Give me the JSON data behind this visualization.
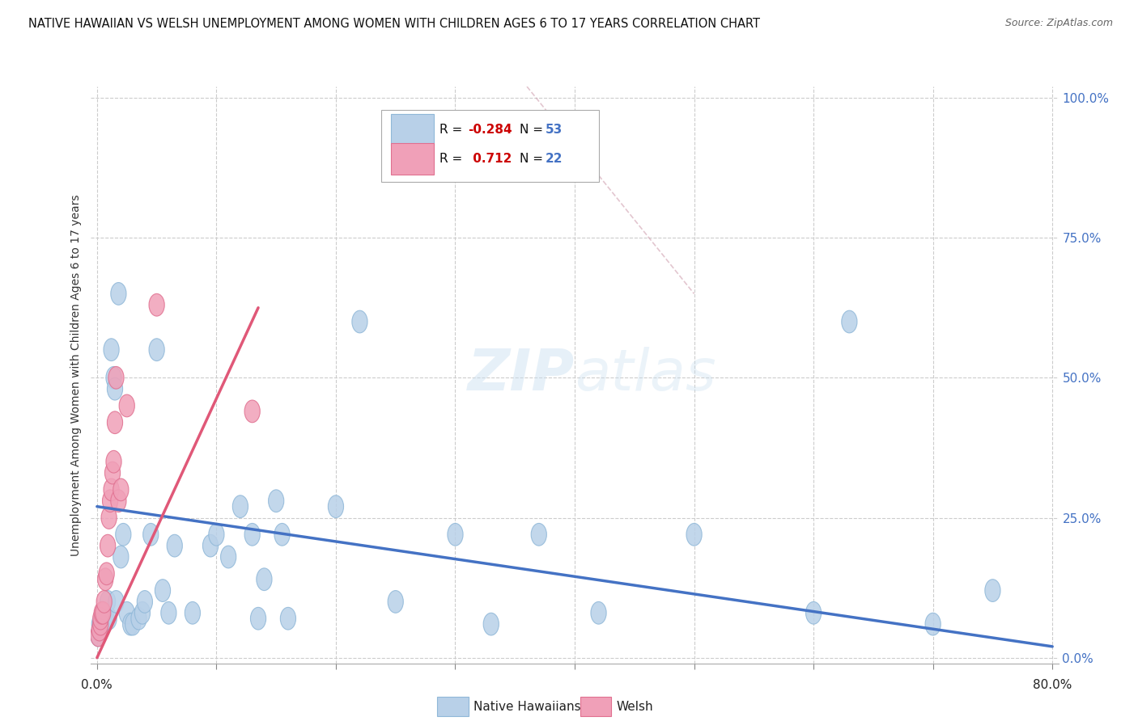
{
  "title": "NATIVE HAWAIIAN VS WELSH UNEMPLOYMENT AMONG WOMEN WITH CHILDREN AGES 6 TO 17 YEARS CORRELATION CHART",
  "source": "Source: ZipAtlas.com",
  "ylabel": "Unemployment Among Women with Children Ages 6 to 17 years",
  "nh_color_face": "#b8d0e8",
  "nh_color_edge": "#90b8d8",
  "welsh_color_face": "#f0a0b8",
  "welsh_color_edge": "#e07090",
  "nh_line_color": "#4472c4",
  "welsh_line_color": "#e05878",
  "diag_color": "#d0a0b0",
  "right_ytick_vals": [
    0.0,
    0.25,
    0.5,
    0.75,
    1.0
  ],
  "right_ytick_labels": [
    "0.0%",
    "25.0%",
    "50.0%",
    "75.0%",
    "100.0%"
  ],
  "right_ytick_color": "#4472c4",
  "watermark_text": "ZIPatlas",
  "watermark_color": "#ddeeff",
  "xlim": [
    0.0,
    0.8
  ],
  "ylim": [
    0.0,
    1.0
  ],
  "nh_x": [
    0.001,
    0.002,
    0.002,
    0.003,
    0.003,
    0.004,
    0.005,
    0.006,
    0.007,
    0.008,
    0.009,
    0.01,
    0.012,
    0.014,
    0.015,
    0.016,
    0.018,
    0.02,
    0.022,
    0.025,
    0.028,
    0.03,
    0.035,
    0.038,
    0.04,
    0.045,
    0.05,
    0.055,
    0.06,
    0.065,
    0.08,
    0.095,
    0.1,
    0.11,
    0.12,
    0.13,
    0.135,
    0.14,
    0.15,
    0.155,
    0.16,
    0.2,
    0.22,
    0.25,
    0.3,
    0.33,
    0.37,
    0.42,
    0.5,
    0.6,
    0.63,
    0.7,
    0.75
  ],
  "nh_y": [
    0.04,
    0.05,
    0.06,
    0.05,
    0.06,
    0.06,
    0.06,
    0.07,
    0.07,
    0.07,
    0.1,
    0.07,
    0.55,
    0.5,
    0.48,
    0.1,
    0.65,
    0.18,
    0.22,
    0.08,
    0.06,
    0.06,
    0.07,
    0.08,
    0.1,
    0.22,
    0.55,
    0.12,
    0.08,
    0.2,
    0.08,
    0.2,
    0.22,
    0.18,
    0.27,
    0.22,
    0.07,
    0.14,
    0.28,
    0.22,
    0.07,
    0.27,
    0.6,
    0.1,
    0.22,
    0.06,
    0.22,
    0.08,
    0.22,
    0.08,
    0.6,
    0.06,
    0.12
  ],
  "welsh_x": [
    0.001,
    0.002,
    0.003,
    0.003,
    0.004,
    0.005,
    0.006,
    0.007,
    0.008,
    0.009,
    0.01,
    0.011,
    0.012,
    0.013,
    0.014,
    0.015,
    0.016,
    0.018,
    0.02,
    0.025,
    0.05,
    0.13
  ],
  "welsh_y": [
    0.04,
    0.05,
    0.06,
    0.07,
    0.08,
    0.08,
    0.1,
    0.14,
    0.15,
    0.2,
    0.25,
    0.28,
    0.3,
    0.33,
    0.35,
    0.42,
    0.5,
    0.28,
    0.3,
    0.45,
    0.63,
    0.44
  ],
  "nh_line_x": [
    0.0,
    0.8
  ],
  "nh_line_y": [
    0.27,
    0.02
  ],
  "welsh_line_x": [
    0.0,
    0.135
  ],
  "welsh_line_y": [
    0.0,
    0.625
  ],
  "diag_line_x": [
    0.36,
    0.5
  ],
  "diag_line_y": [
    1.02,
    0.65
  ],
  "legend_R_nh": "-0.284",
  "legend_N_nh": "53",
  "legend_R_welsh": "0.712",
  "legend_N_welsh": "22",
  "legend_R_color": "#cc0000",
  "legend_N_color": "#4472c4"
}
